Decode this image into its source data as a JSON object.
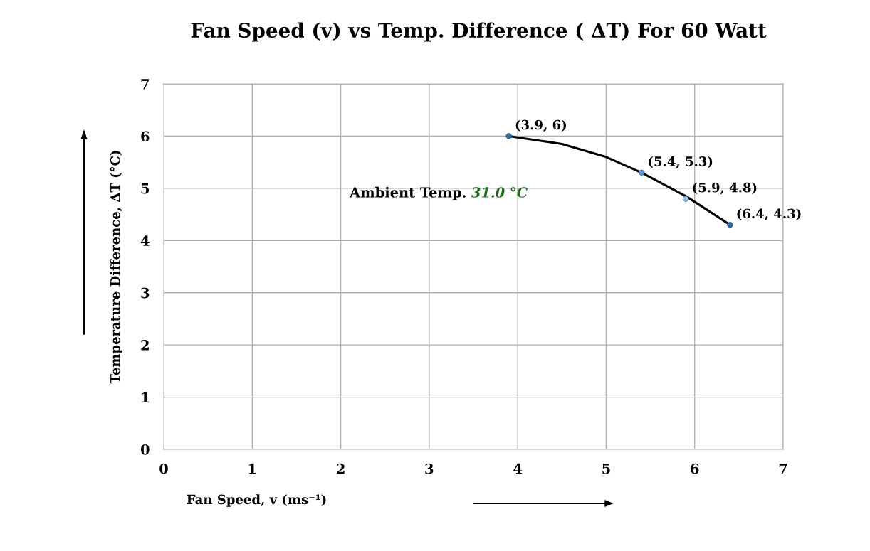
{
  "chart_data": {
    "type": "scatter",
    "title": "Fan Speed (v) vs Temp. Difference ( ΔT) For 60 Watt",
    "xlabel": "Fan Speed, v (ms⁻¹)",
    "ylabel": "Temperature Difference, ΔT (°C)",
    "series": [
      {
        "x": [
          3.9,
          5.4,
          5.9,
          6.4
        ],
        "values": [
          6,
          5.3,
          4.8,
          4.3
        ],
        "colors": [
          "#2e6fa8",
          "#5b9bd5",
          "#9dc3e6",
          "#2e6fa8"
        ],
        "marker": "circle",
        "value_labels": [
          "(3.9, 6)",
          "(5.4, 5.3)",
          "(5.9, 4.8)",
          "(6.4, 4.3)"
        ]
      },
      {
        "type": "line",
        "x": [
          3.9,
          4.5,
          5.0,
          5.4,
          5.9,
          6.4
        ],
        "values": [
          6.0,
          5.85,
          5.6,
          5.3,
          4.85,
          4.3
        ],
        "color": "#000000"
      }
    ],
    "annotations": [
      "Ambient Temp.",
      "31.0 °C"
    ],
    "xlim": [
      0,
      7
    ],
    "ylim": [
      0,
      7
    ],
    "xticks": [
      0,
      1,
      2,
      3,
      4,
      5,
      6,
      7
    ],
    "yticks": [
      0,
      1,
      2,
      3,
      4,
      5,
      6,
      7
    ],
    "grid": true
  }
}
